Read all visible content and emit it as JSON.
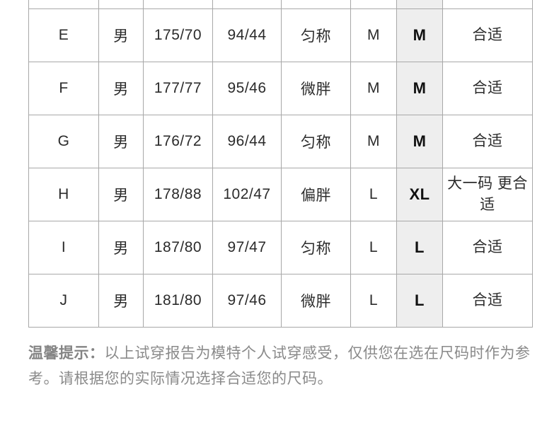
{
  "table": {
    "columns": [
      "model",
      "gender",
      "height_weight",
      "bust_size",
      "body_type",
      "usual_size",
      "tried_size",
      "feedback"
    ],
    "highlight_column": "tried_size",
    "highlight_bg": "#eeeeee",
    "border_color": "#a8a8a8",
    "rows": [
      {
        "model": "E",
        "gender": "男",
        "height_weight": "175/70",
        "bust_size": "94/44",
        "body_type": "匀称",
        "usual_size": "M",
        "tried_size": "M",
        "feedback": "合适"
      },
      {
        "model": "F",
        "gender": "男",
        "height_weight": "177/77",
        "bust_size": "95/46",
        "body_type": "微胖",
        "usual_size": "M",
        "tried_size": "M",
        "feedback": "合适"
      },
      {
        "model": "G",
        "gender": "男",
        "height_weight": "176/72",
        "bust_size": "96/44",
        "body_type": "匀称",
        "usual_size": "M",
        "tried_size": "M",
        "feedback": "合适"
      },
      {
        "model": "H",
        "gender": "男",
        "height_weight": "178/88",
        "bust_size": "102/47",
        "body_type": "偏胖",
        "usual_size": "L",
        "tried_size": "XL",
        "feedback": "大一码 更合适"
      },
      {
        "model": "I",
        "gender": "男",
        "height_weight": "187/80",
        "bust_size": "97/47",
        "body_type": "匀称",
        "usual_size": "L",
        "tried_size": "L",
        "feedback": "合适"
      },
      {
        "model": "J",
        "gender": "男",
        "height_weight": "181/80",
        "bust_size": "97/46",
        "body_type": "微胖",
        "usual_size": "L",
        "tried_size": "L",
        "feedback": "合适"
      }
    ]
  },
  "note": {
    "label": "温馨提示：",
    "text": "以上试穿报告为模特个人试穿感受，仅供您在选在尺码时作为参考。请根据您的实际情况选择合适您的尺码。"
  }
}
